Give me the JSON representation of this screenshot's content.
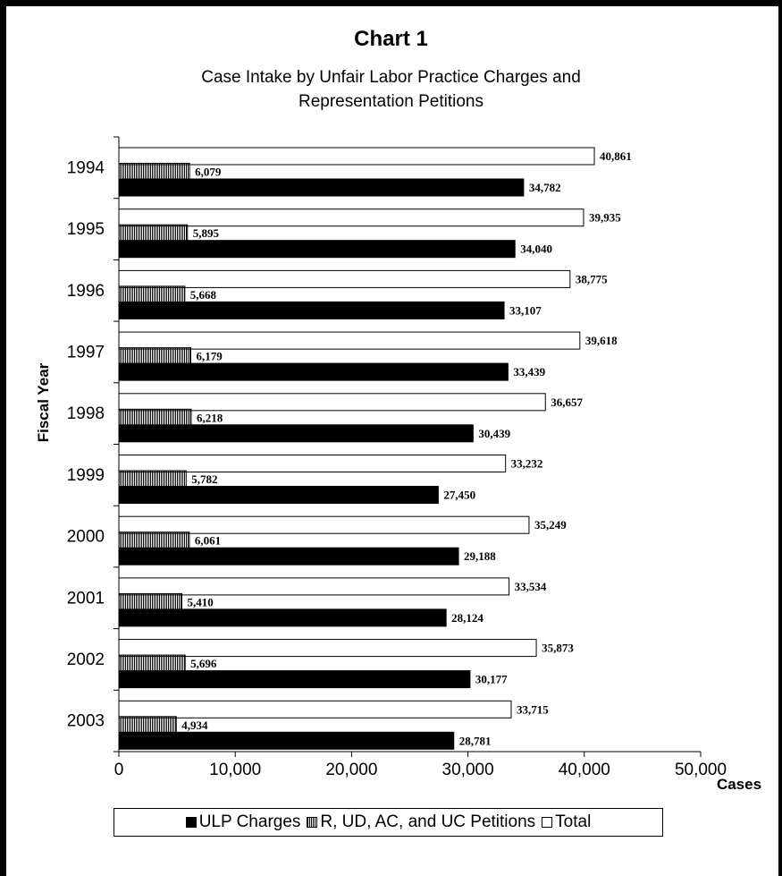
{
  "chart_data": {
    "type": "bar",
    "orientation": "horizontal",
    "title": "Chart 1",
    "subtitle": [
      "Case Intake by Unfair Labor Practice Charges and",
      "Representation Petitions"
    ],
    "xlabel": "Cases",
    "ylabel": "Fiscal Year",
    "xlim": [
      0,
      50000
    ],
    "xticks": [
      "0",
      "10,000",
      "20,000",
      "30,000",
      "40,000",
      "50,000"
    ],
    "categories": [
      "1994",
      "1995",
      "1996",
      "1997",
      "1998",
      "1999",
      "2000",
      "2001",
      "2002",
      "2003"
    ],
    "series": [
      {
        "name": "ULP Charges",
        "fill": "solid",
        "values": [
          34782,
          34040,
          33107,
          33439,
          30439,
          27450,
          29188,
          28124,
          30177,
          28781
        ],
        "labels": [
          "34,782",
          "34,040",
          "33,107",
          "33,439",
          "30,439",
          "27,450",
          "29,188",
          "28,124",
          "30,177",
          "28,781"
        ]
      },
      {
        "name": "R, UD, AC, and UC Petitions",
        "fill": "hatched",
        "values": [
          6079,
          5895,
          5668,
          6179,
          6218,
          5782,
          6061,
          5410,
          5696,
          4934
        ],
        "labels": [
          "6,079",
          "5,895",
          "5,668",
          "6,179",
          "6,218",
          "5,782",
          "6,061",
          "5,410",
          "5,696",
          "4,934"
        ]
      },
      {
        "name": "Total",
        "fill": "open",
        "values": [
          40861,
          39935,
          38775,
          39618,
          36657,
          33232,
          35249,
          33534,
          35873,
          33715
        ],
        "labels": [
          "40,861",
          "39,935",
          "38,775",
          "39,618",
          "36,657",
          "33,232",
          "35,249",
          "33,534",
          "35,873",
          "33,715"
        ]
      }
    ],
    "legend_position": "bottom",
    "grid": false
  },
  "colors": {
    "bar": "#000000",
    "background": "#ffffff"
  }
}
